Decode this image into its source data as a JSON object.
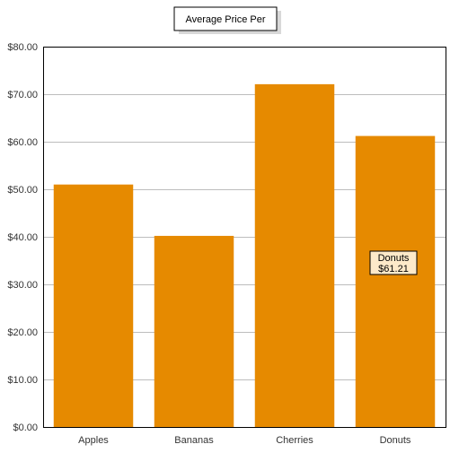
{
  "chart_data": {
    "type": "bar",
    "title": "Average Price Per",
    "categories": [
      "Apples",
      "Bananas",
      "Cherries",
      "Donuts"
    ],
    "values": [
      51.0,
      40.2,
      72.1,
      61.21
    ],
    "ylim": [
      0,
      80
    ],
    "yticks": [
      0,
      10,
      20,
      30,
      40,
      50,
      60,
      70,
      80
    ],
    "ytick_labels": [
      "$0.00",
      "$10.00",
      "$20.00",
      "$30.00",
      "$40.00",
      "$50.00",
      "$60.00",
      "$70.00",
      "$80.00"
    ],
    "grid": true,
    "bar_color": "#e68a00",
    "tooltip": {
      "category": "Donuts",
      "value_label": "$61.21"
    }
  }
}
